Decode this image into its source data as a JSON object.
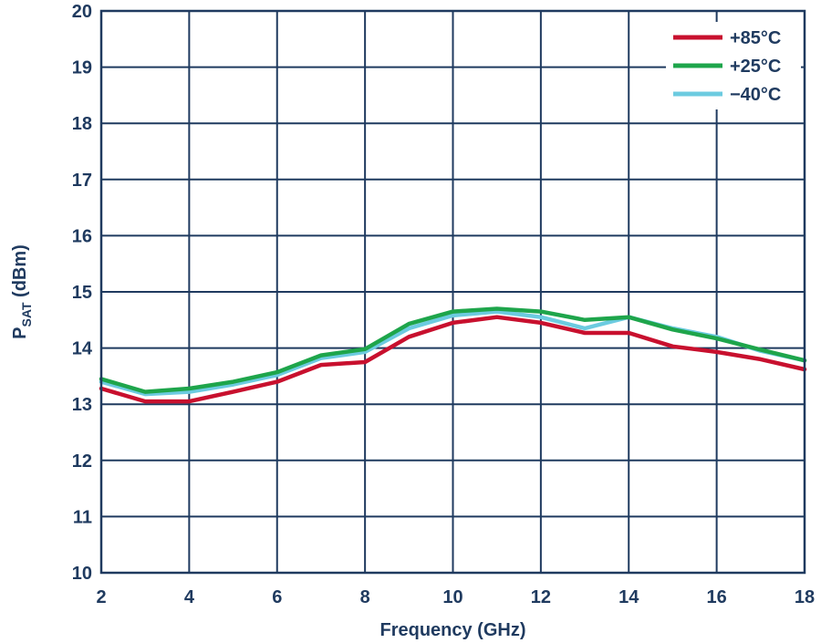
{
  "chart_data": {
    "type": "line",
    "title": "",
    "xlabel": "Frequency (GHz)",
    "ylabel": {
      "main": "P",
      "sub": "SAT",
      "unit": " (dBm)"
    },
    "xlim": [
      2,
      18
    ],
    "ylim": [
      10,
      20
    ],
    "x_ticks": [
      2,
      4,
      6,
      8,
      10,
      12,
      14,
      16,
      18
    ],
    "y_ticks": [
      10,
      11,
      12,
      13,
      14,
      15,
      16,
      17,
      18,
      19,
      20
    ],
    "grid": true,
    "legend_position": "top-right",
    "x": [
      2,
      3,
      4,
      5,
      6,
      7,
      8,
      9,
      10,
      11,
      12,
      13,
      14,
      15,
      16,
      17,
      18
    ],
    "series": [
      {
        "name": "+85°C",
        "color": "#c8102e",
        "values": [
          13.28,
          13.05,
          13.05,
          13.22,
          13.4,
          13.7,
          13.75,
          14.2,
          14.45,
          14.55,
          14.45,
          14.27,
          14.27,
          14.03,
          13.93,
          13.8,
          13.62
        ]
      },
      {
        "name": "+25°C",
        "color": "#1ea54b",
        "values": [
          13.45,
          13.22,
          13.28,
          13.4,
          13.57,
          13.87,
          13.98,
          14.43,
          14.65,
          14.7,
          14.65,
          14.5,
          14.55,
          14.33,
          14.17,
          13.97,
          13.78
        ]
      },
      {
        "name": "−40°C",
        "color": "#6ccbe0",
        "values": [
          13.4,
          13.18,
          13.22,
          13.35,
          13.52,
          13.82,
          13.93,
          14.35,
          14.58,
          14.65,
          14.55,
          14.35,
          14.55,
          14.35,
          14.2,
          13.95,
          13.78
        ]
      }
    ]
  }
}
